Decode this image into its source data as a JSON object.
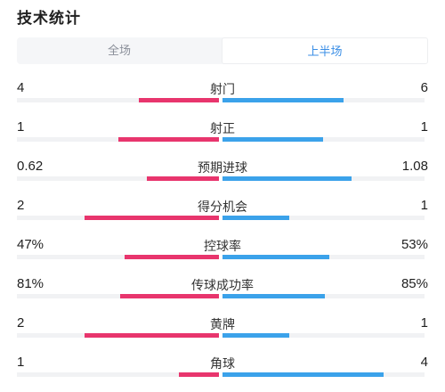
{
  "title": "技术统计",
  "tabs": [
    {
      "label": "全场",
      "active": false
    },
    {
      "label": "上半场",
      "active": true
    }
  ],
  "colors": {
    "home": "#e8356d",
    "away": "#3ba2ea",
    "active_tab": "#3a8ee6"
  },
  "stats": [
    {
      "label": "射门",
      "home": "4",
      "away": "6",
      "home_share": 0.4,
      "away_share": 0.6
    },
    {
      "label": "射正",
      "home": "1",
      "away": "1",
      "home_share": 0.5,
      "away_share": 0.5
    },
    {
      "label": "预期进球",
      "home": "0.62",
      "away": "1.08",
      "home_share": 0.36,
      "away_share": 0.64
    },
    {
      "label": "得分机会",
      "home": "2",
      "away": "1",
      "home_share": 0.67,
      "away_share": 0.33
    },
    {
      "label": "控球率",
      "home": "47%",
      "away": "53%",
      "home_share": 0.47,
      "away_share": 0.53
    },
    {
      "label": "传球成功率",
      "home": "81%",
      "away": "85%",
      "home_share": 0.49,
      "away_share": 0.51
    },
    {
      "label": "黄牌",
      "home": "2",
      "away": "1",
      "home_share": 0.67,
      "away_share": 0.33
    },
    {
      "label": "角球",
      "home": "1",
      "away": "4",
      "home_share": 0.2,
      "away_share": 0.8
    }
  ]
}
